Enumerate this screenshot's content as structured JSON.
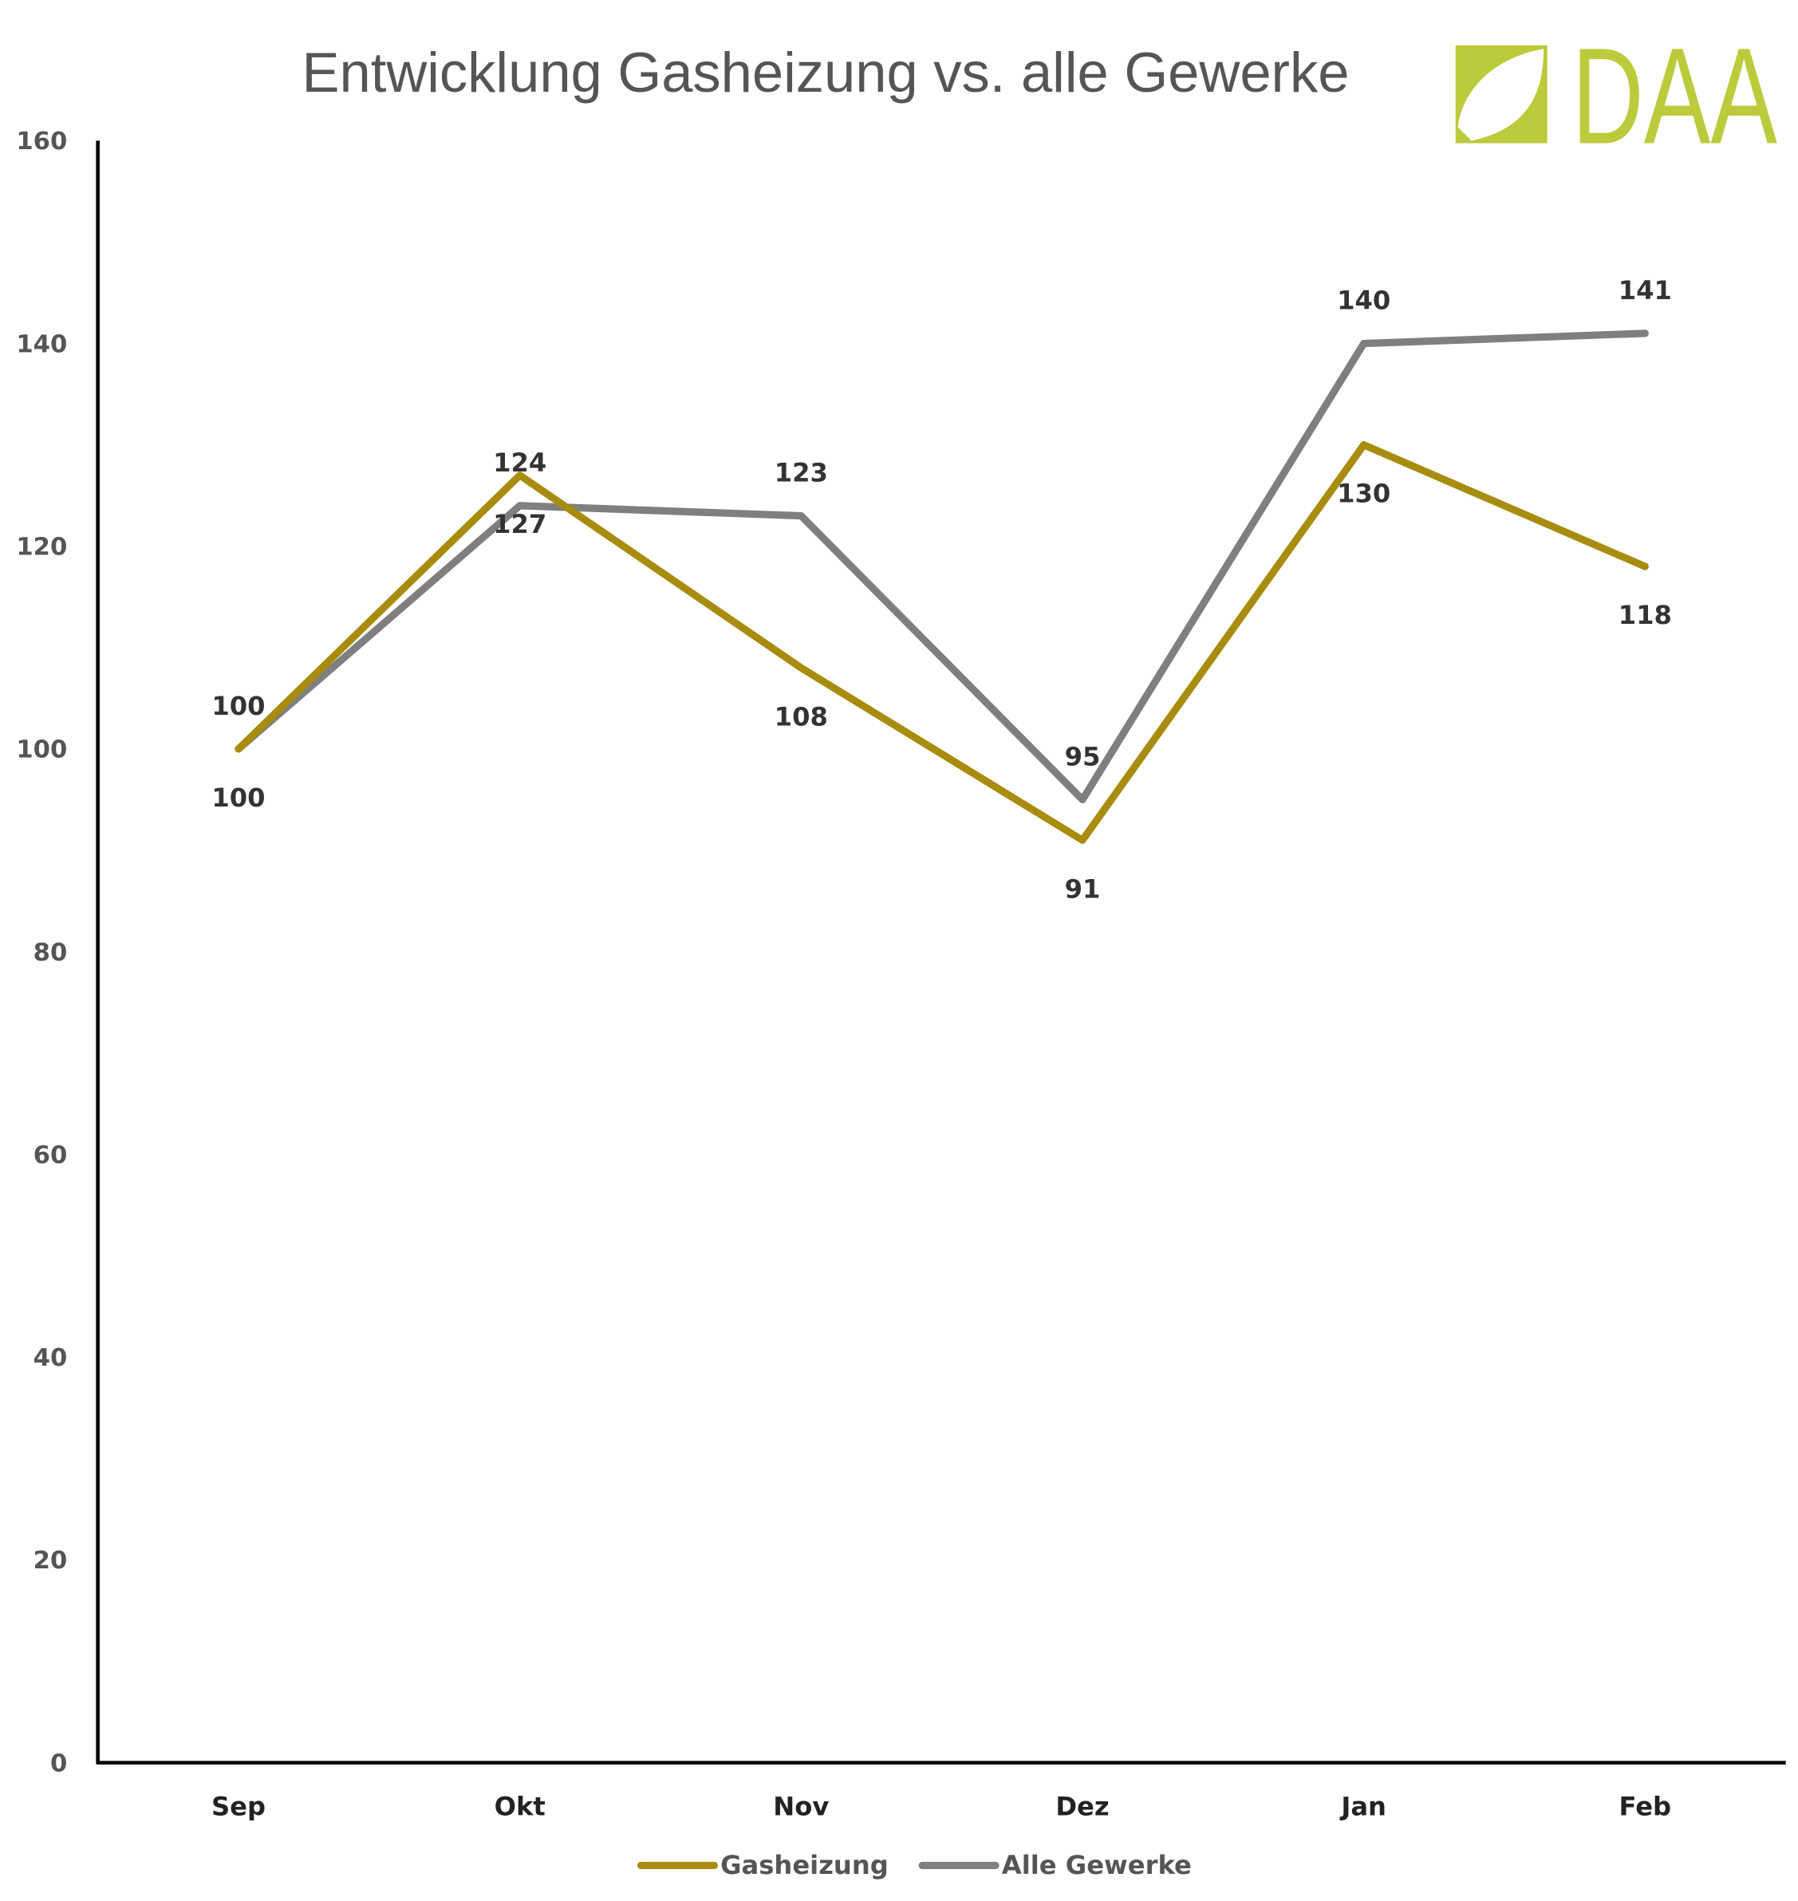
{
  "chart_data": {
    "type": "line",
    "title": "Entwicklung Gasheizung vs. alle Gewerke",
    "categories": [
      "Sep",
      "Okt",
      "Nov",
      "Dez",
      "Jan",
      "Feb"
    ],
    "series": [
      {
        "name": "Gasheizung",
        "color": "#a88c0e",
        "values": [
          100,
          127,
          108,
          91,
          130,
          118
        ],
        "label_position": "below"
      },
      {
        "name": "Alle Gewerke",
        "color": "#7f7f7f",
        "values": [
          100,
          124,
          123,
          95,
          140,
          141
        ],
        "label_position": "above"
      }
    ],
    "ylim": [
      0,
      160
    ],
    "yticks": [
      0,
      20,
      40,
      60,
      80,
      100,
      120,
      140,
      160
    ],
    "xlabel": "",
    "ylabel": "",
    "grid": false,
    "legend": "bottom"
  },
  "logo": {
    "text": "DAA",
    "color": "#bccb3b"
  }
}
